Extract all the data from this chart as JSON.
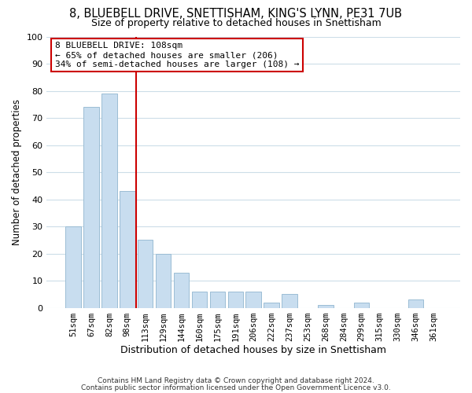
{
  "title": "8, BLUEBELL DRIVE, SNETTISHAM, KING'S LYNN, PE31 7UB",
  "subtitle": "Size of property relative to detached houses in Snettisham",
  "xlabel": "Distribution of detached houses by size in Snettisham",
  "ylabel": "Number of detached properties",
  "bar_labels": [
    "51sqm",
    "67sqm",
    "82sqm",
    "98sqm",
    "113sqm",
    "129sqm",
    "144sqm",
    "160sqm",
    "175sqm",
    "191sqm",
    "206sqm",
    "222sqm",
    "237sqm",
    "253sqm",
    "268sqm",
    "284sqm",
    "299sqm",
    "315sqm",
    "330sqm",
    "346sqm",
    "361sqm"
  ],
  "bar_values": [
    30,
    74,
    79,
    43,
    25,
    20,
    13,
    6,
    6,
    6,
    6,
    2,
    5,
    0,
    1,
    0,
    2,
    0,
    0,
    3,
    0
  ],
  "bar_color": "#c8ddef",
  "bar_edge_color": "#9bbdd4",
  "vline_color": "#cc0000",
  "annotation_line1": "8 BLUEBELL DRIVE: 108sqm",
  "annotation_line2": "← 65% of detached houses are smaller (206)",
  "annotation_line3": "34% of semi-detached houses are larger (108) →",
  "annotation_box_color": "#ffffff",
  "annotation_box_edge": "#cc0000",
  "ylim": [
    0,
    100
  ],
  "yticks": [
    0,
    10,
    20,
    30,
    40,
    50,
    60,
    70,
    80,
    90,
    100
  ],
  "footer_line1": "Contains HM Land Registry data © Crown copyright and database right 2024.",
  "footer_line2": "Contains public sector information licensed under the Open Government Licence v3.0.",
  "background_color": "#ffffff",
  "grid_color": "#ccdde8",
  "title_fontsize": 10.5,
  "subtitle_fontsize": 9,
  "annotation_fontsize": 8,
  "xlabel_fontsize": 9,
  "ylabel_fontsize": 8.5,
  "xtick_fontsize": 7.5,
  "ytick_fontsize": 8,
  "footer_fontsize": 6.5
}
